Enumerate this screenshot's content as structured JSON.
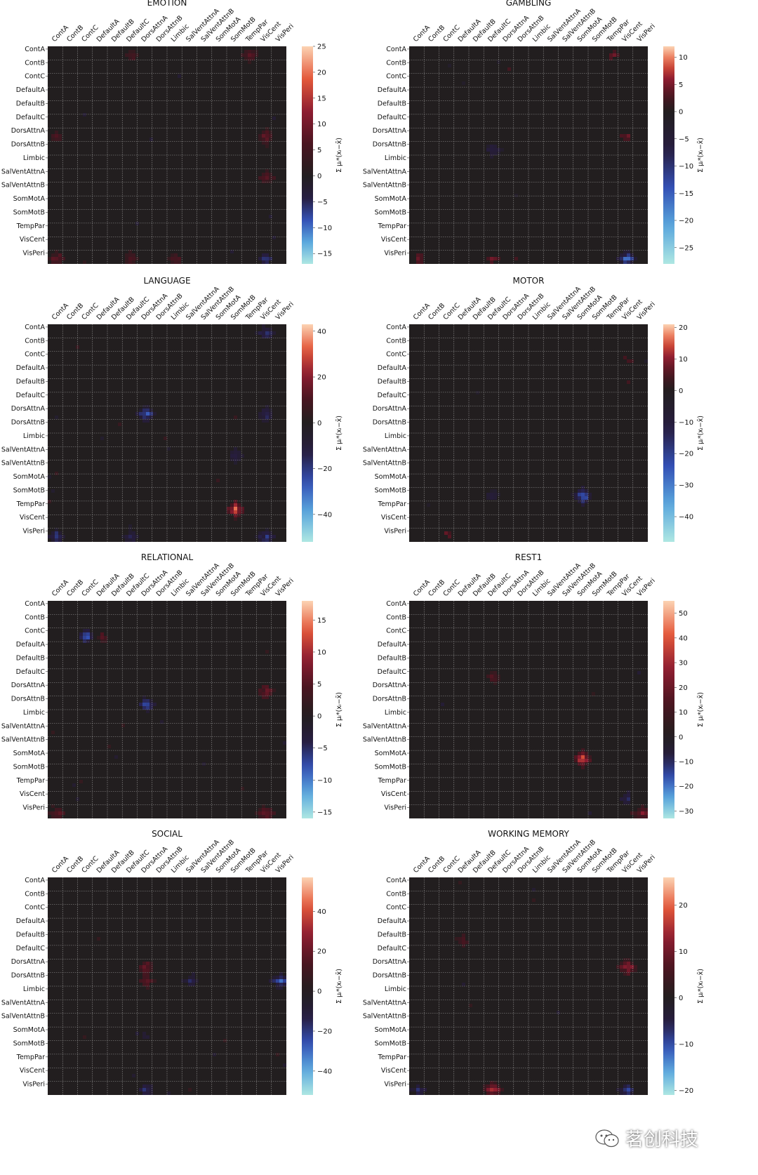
{
  "colors": {
    "background": "#221e1f",
    "gridline": "#9a9a9a",
    "stops": [
      "#aee7e2",
      "#5aa7dd",
      "#3350b5",
      "#271d40",
      "#221e1f",
      "#4a1520",
      "#8e1d31",
      "#e4583a",
      "#fcd3b3"
    ]
  },
  "chart_data": [
    {
      "type": "heatmap",
      "title": "EMOTION",
      "xlabels": [
        "ContA",
        "ContB",
        "ContC",
        "DefaultA",
        "DefaultB",
        "DefaultC",
        "DorsAttnA",
        "DorsAttnB",
        "Limbic",
        "SalVentAttnA",
        "SalVentAttnB",
        "SomMotA",
        "SomMotB",
        "TempPar",
        "VisCent",
        "VisPeri"
      ],
      "ylabels": [
        "ContA",
        "ContB",
        "ContC",
        "DefaultA",
        "DefaultB",
        "DefaultC",
        "DorsAttnA",
        "DorsAttnB",
        "Limbic",
        "SalVentAttnA",
        "SalVentAttnB",
        "SomMotA",
        "SomMotB",
        "TempPar",
        "VisCent",
        "VisPeri"
      ],
      "colorbar": {
        "label": "Σ μᵢ*(xᵢ−x̄)",
        "vmin": -17,
        "vmax": 25,
        "ticks": [
          -15,
          -10,
          -5,
          0,
          5,
          10,
          15,
          20,
          25
        ]
      },
      "hotspots": [
        {
          "x": "TempPar",
          "y": "ContA",
          "value": 10
        },
        {
          "x": "DefaultC",
          "y": "ContA",
          "value": 7
        },
        {
          "x": "VisCent",
          "y": "DorsAttnA",
          "value": 12
        },
        {
          "x": "ContA",
          "y": "DorsAttnA",
          "value": 8
        },
        {
          "x": "VisCent",
          "y": "SalVentAttnA",
          "value": 10
        },
        {
          "x": "ContA",
          "y": "VisPeri",
          "value": 12
        },
        {
          "x": "DefaultC",
          "y": "VisPeri",
          "value": 9
        },
        {
          "x": "Limbic",
          "y": "VisPeri",
          "value": 8
        },
        {
          "x": "VisCent",
          "y": "VisPeri",
          "value": -8
        }
      ]
    },
    {
      "type": "heatmap",
      "title": "GAMBLING",
      "xlabels": [
        "ContA",
        "ContB",
        "ContC",
        "DefaultA",
        "DefaultB",
        "DefaultC",
        "DorsAttnA",
        "DorsAttnB",
        "Limbic",
        "SalVentAttnA",
        "SalVentAttnB",
        "SomMotA",
        "SomMotB",
        "TempPar",
        "VisCent",
        "VisPeri"
      ],
      "ylabels": [
        "ContA",
        "ContB",
        "ContC",
        "DefaultA",
        "DefaultB",
        "DefaultC",
        "DorsAttnA",
        "DorsAttnB",
        "Limbic",
        "SalVentAttnA",
        "SalVentAttnB",
        "SomMotA",
        "SomMotB",
        "TempPar",
        "VisCent",
        "VisPeri"
      ],
      "colorbar": {
        "label": "Σ μᵢ*(xᵢ−x̄)",
        "vmin": -28,
        "vmax": 12,
        "ticks": [
          -25,
          -20,
          -15,
          -10,
          -5,
          0,
          5,
          10
        ]
      },
      "hotspots": [
        {
          "x": "TempPar",
          "y": "ContA",
          "value": 6
        },
        {
          "x": "DefaultC",
          "y": "DorsAttnB",
          "value": -10
        },
        {
          "x": "VisCent",
          "y": "DorsAttnA",
          "value": 6
        },
        {
          "x": "DefaultC",
          "y": "VisPeri",
          "value": 6
        },
        {
          "x": "VisCent",
          "y": "VisPeri",
          "value": -20
        },
        {
          "x": "ContA",
          "y": "VisPeri",
          "value": 5
        }
      ]
    },
    {
      "type": "heatmap",
      "title": "LANGUAGE",
      "xlabels": [
        "ContA",
        "ContB",
        "ContC",
        "DefaultA",
        "DefaultB",
        "DefaultC",
        "DorsAttnA",
        "DorsAttnB",
        "Limbic",
        "SalVentAttnA",
        "SalVentAttnB",
        "SomMotA",
        "SomMotB",
        "TempPar",
        "VisCent",
        "VisPeri"
      ],
      "ylabels": [
        "ContA",
        "ContB",
        "ContC",
        "DefaultA",
        "DefaultB",
        "DefaultC",
        "DorsAttnA",
        "DorsAttnB",
        "Limbic",
        "SalVentAttnA",
        "SalVentAttnB",
        "SomMotA",
        "SomMotB",
        "TempPar",
        "VisCent",
        "VisPeri"
      ],
      "colorbar": {
        "label": "Σ μᵢ*(xᵢ−x̄)",
        "vmin": -52,
        "vmax": 43,
        "ticks": [
          -40,
          -20,
          0,
          20,
          40
        ]
      },
      "hotspots": [
        {
          "x": "VisCent",
          "y": "ContA",
          "value": -25
        },
        {
          "x": "DorsAttnA",
          "y": "DorsAttnA",
          "value": -35
        },
        {
          "x": "VisCent",
          "y": "DorsAttnA",
          "value": -25
        },
        {
          "x": "SomMotB",
          "y": "SalVentAttnA",
          "value": -20
        },
        {
          "x": "SomMotB",
          "y": "TempPar",
          "value": 40
        },
        {
          "x": "ContA",
          "y": "VisPeri",
          "value": -25
        },
        {
          "x": "DefaultC",
          "y": "VisPeri",
          "value": -20
        },
        {
          "x": "VisCent",
          "y": "VisPeri",
          "value": -30
        }
      ]
    },
    {
      "type": "heatmap",
      "title": "MOTOR",
      "xlabels": [
        "ContA",
        "ContB",
        "ContC",
        "DefaultA",
        "DefaultB",
        "DefaultC",
        "DorsAttnA",
        "DorsAttnB",
        "Limbic",
        "SalVentAttnA",
        "SalVentAttnB",
        "SomMotA",
        "SomMotB",
        "TempPar",
        "VisCent",
        "VisPeri"
      ],
      "ylabels": [
        "ContA",
        "ContB",
        "ContC",
        "DefaultA",
        "DefaultB",
        "DefaultC",
        "DorsAttnA",
        "DorsAttnB",
        "Limbic",
        "SalVentAttnA",
        "SalVentAttnB",
        "SomMotA",
        "SomMotB",
        "TempPar",
        "VisCent",
        "VisPeri"
      ],
      "colorbar": {
        "label": "Σ μᵢ*(xᵢ−x̄)",
        "vmin": -48,
        "vmax": 21,
        "ticks": [
          -40,
          -30,
          -20,
          -10,
          0,
          10,
          20
        ]
      },
      "hotspots": [
        {
          "x": "SomMotA",
          "y": "SomMotB",
          "value": -40
        },
        {
          "x": "VisCent",
          "y": "ContC",
          "value": 8
        },
        {
          "x": "ContC",
          "y": "VisPeri",
          "value": 8
        },
        {
          "x": "DefaultC",
          "y": "SomMotB",
          "value": -15
        }
      ]
    },
    {
      "type": "heatmap",
      "title": "RELATIONAL",
      "xlabels": [
        "ContA",
        "ContB",
        "ContC",
        "DefaultA",
        "DefaultB",
        "DefaultC",
        "DorsAttnA",
        "DorsAttnB",
        "Limbic",
        "SalVentAttnA",
        "SalVentAttnB",
        "SomMotA",
        "SomMotB",
        "TempPar",
        "VisCent",
        "VisPeri"
      ],
      "ylabels": [
        "ContA",
        "ContB",
        "ContC",
        "DefaultA",
        "DefaultB",
        "DefaultC",
        "DorsAttnA",
        "DorsAttnB",
        "Limbic",
        "SalVentAttnA",
        "SalVentAttnB",
        "SomMotA",
        "SomMotB",
        "TempPar",
        "VisCent",
        "VisPeri"
      ],
      "colorbar": {
        "label": "Σ μᵢ*(xᵢ−x̄)",
        "vmin": -16,
        "vmax": 18,
        "ticks": [
          -15,
          -10,
          -5,
          0,
          5,
          10,
          15
        ]
      },
      "hotspots": [
        {
          "x": "ContC",
          "y": "ContC",
          "value": -12
        },
        {
          "x": "VisCent",
          "y": "DorsAttnA",
          "value": 10
        },
        {
          "x": "DorsAttnA",
          "y": "DorsAttnB",
          "value": -10
        },
        {
          "x": "VisCent",
          "y": "VisPeri",
          "value": 10
        },
        {
          "x": "ContA",
          "y": "VisPeri",
          "value": 8
        },
        {
          "x": "DefaultA",
          "y": "ContC",
          "value": 6
        }
      ]
    },
    {
      "type": "heatmap",
      "title": "REST1",
      "xlabels": [
        "ContA",
        "ContB",
        "ContC",
        "DefaultA",
        "DefaultB",
        "DefaultC",
        "DorsAttnA",
        "DorsAttnB",
        "Limbic",
        "SalVentAttnA",
        "SalVentAttnB",
        "SomMotA",
        "SomMotB",
        "TempPar",
        "VisCent",
        "VisPeri"
      ],
      "ylabels": [
        "ContA",
        "ContB",
        "ContC",
        "DefaultA",
        "DefaultB",
        "DefaultC",
        "DorsAttnA",
        "DorsAttnB",
        "Limbic",
        "SalVentAttnA",
        "SalVentAttnB",
        "SomMotA",
        "SomMotB",
        "TempPar",
        "VisCent",
        "VisPeri"
      ],
      "colorbar": {
        "label": "Σ μᵢ*(xᵢ−x̄)",
        "vmin": -33,
        "vmax": 55,
        "ticks": [
          -30,
          -20,
          -10,
          0,
          10,
          20,
          30,
          40,
          50
        ]
      },
      "hotspots": [
        {
          "x": "SomMotA",
          "y": "SomMotA",
          "value": 50
        },
        {
          "x": "DefaultC",
          "y": "DefaultC",
          "value": 20
        },
        {
          "x": "VisPeri",
          "y": "VisPeri",
          "value": 30
        },
        {
          "x": "VisCent",
          "y": "VisCent",
          "value": -15
        }
      ]
    },
    {
      "type": "heatmap",
      "title": "SOCIAL",
      "xlabels": [
        "ContA",
        "ContB",
        "ContC",
        "DefaultA",
        "DefaultB",
        "DefaultC",
        "DorsAttnA",
        "DorsAttnB",
        "Limbic",
        "SalVentAttnA",
        "SalVentAttnB",
        "SomMotA",
        "SomMotB",
        "TempPar",
        "VisCent",
        "VisPeri"
      ],
      "ylabels": [
        "ContA",
        "ContB",
        "ContC",
        "DefaultA",
        "DefaultB",
        "DefaultC",
        "DorsAttnA",
        "DorsAttnB",
        "Limbic",
        "SalVentAttnA",
        "SalVentAttnB",
        "SomMotA",
        "SomMotB",
        "TempPar",
        "VisCent",
        "VisPeri"
      ],
      "colorbar": {
        "label": "Σ μᵢ*(xᵢ−x̄)",
        "vmin": -52,
        "vmax": 57,
        "ticks": [
          -40,
          -20,
          0,
          20,
          40
        ]
      },
      "hotspots": [
        {
          "x": "DorsAttnA",
          "y": "DorsAttnA",
          "value": 30
        },
        {
          "x": "DorsAttnA",
          "y": "DorsAttnB",
          "value": 25
        },
        {
          "x": "VisPeri",
          "y": "DorsAttnB",
          "value": -35
        },
        {
          "x": "SalVentAttnA",
          "y": "DorsAttnB",
          "value": -20
        },
        {
          "x": "DorsAttnA",
          "y": "VisPeri",
          "value": -25
        },
        {
          "x": "DorsAttnA",
          "y": "SomMotA",
          "value": -15
        }
      ]
    },
    {
      "type": "heatmap",
      "title": "WORKING MEMORY",
      "xlabels": [
        "ContA",
        "ContB",
        "ContC",
        "DefaultA",
        "DefaultB",
        "DefaultC",
        "DorsAttnA",
        "DorsAttnB",
        "Limbic",
        "SalVentAttnA",
        "SalVentAttnB",
        "SomMotA",
        "SomMotB",
        "TempPar",
        "VisCent",
        "VisPeri"
      ],
      "ylabels": [
        "ContA",
        "ContB",
        "ContC",
        "DefaultA",
        "DefaultB",
        "DefaultC",
        "DorsAttnA",
        "DorsAttnB",
        "Limbic",
        "SalVentAttnA",
        "SalVentAttnB",
        "SomMotA",
        "SomMotB",
        "TempPar",
        "VisCent",
        "VisPeri"
      ],
      "colorbar": {
        "label": "Σ μᵢ*(xᵢ−x̄)",
        "vmin": -21,
        "vmax": 26,
        "ticks": [
          -20,
          -10,
          0,
          10,
          20
        ]
      },
      "hotspots": [
        {
          "x": "VisCent",
          "y": "DorsAttnA",
          "value": 20
        },
        {
          "x": "DefaultC",
          "y": "VisPeri",
          "value": 20
        },
        {
          "x": "VisCent",
          "y": "VisPeri",
          "value": -12
        },
        {
          "x": "DefaultA",
          "y": "DefaultB",
          "value": 8
        },
        {
          "x": "ContA",
          "y": "VisPeri",
          "value": -8
        }
      ]
    }
  ],
  "watermark": {
    "text": "茗创科技",
    "icon": "wechat-icon"
  }
}
